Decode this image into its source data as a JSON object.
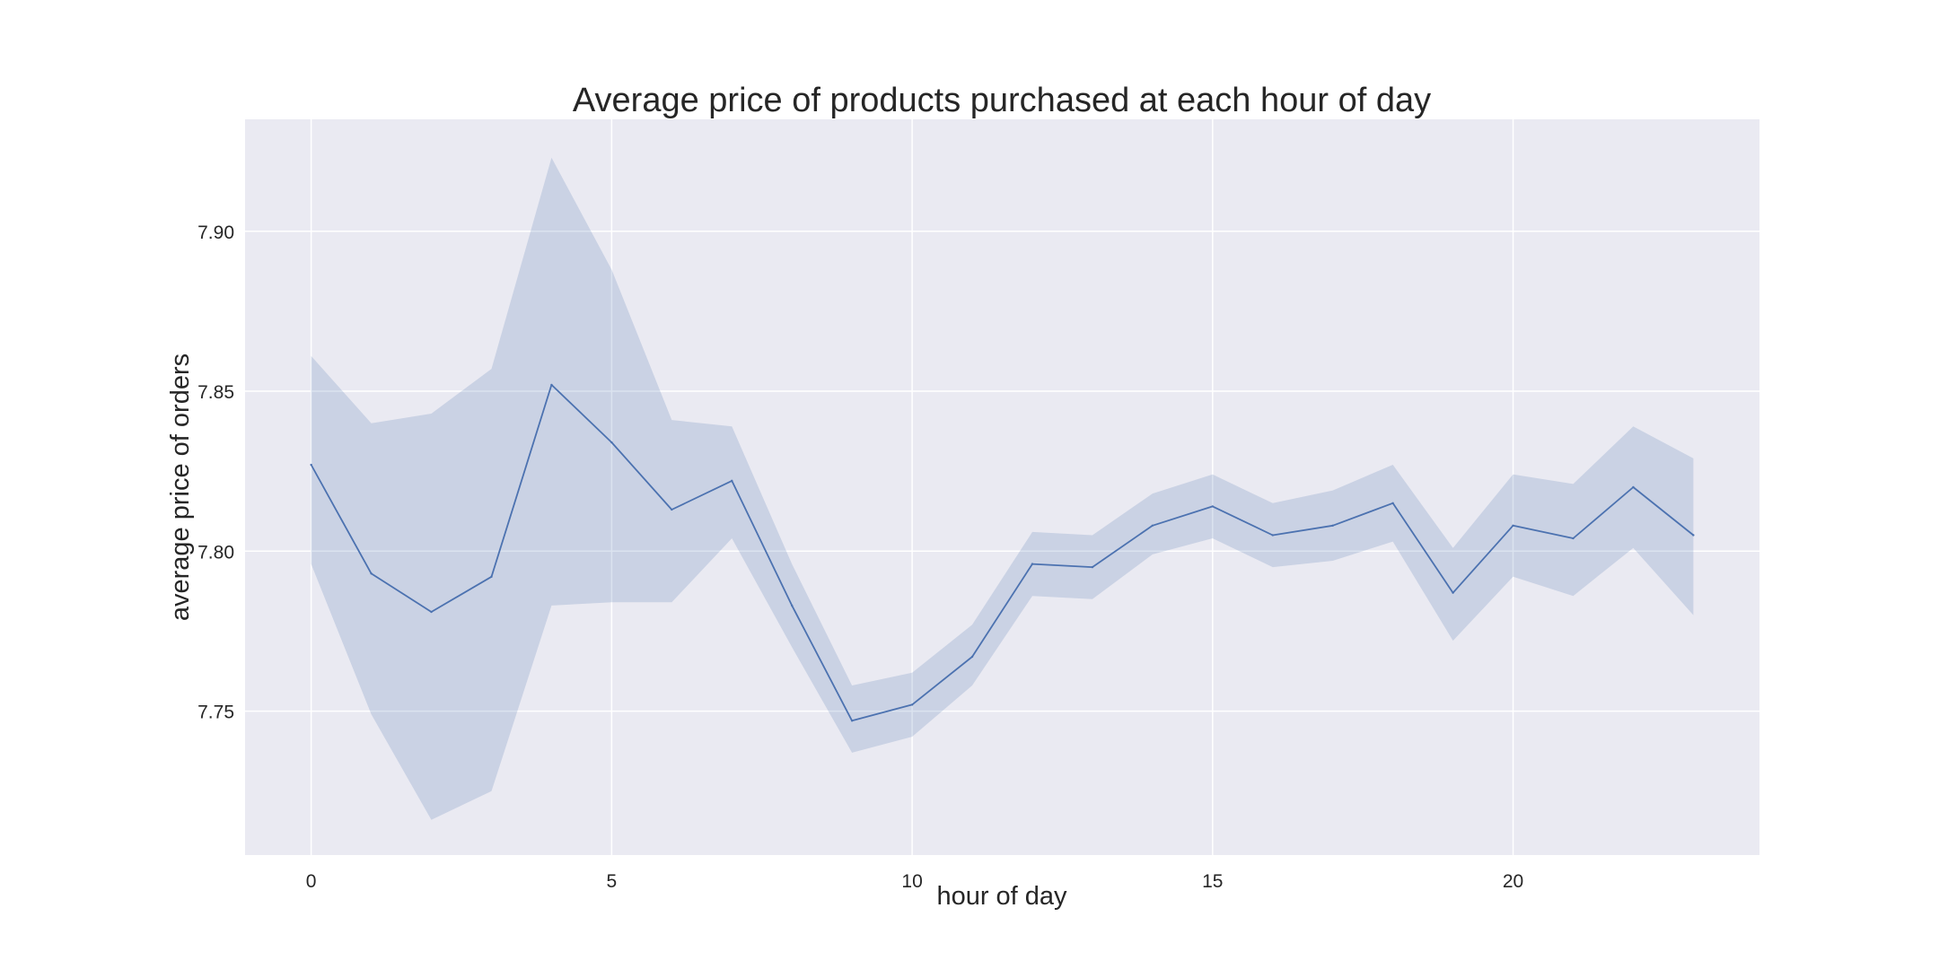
{
  "chart_data": {
    "type": "line",
    "title": "Average price of products purchased at each hour of day",
    "xlabel": "hour of day",
    "ylabel": "average price of orders",
    "xlim": [
      -1.1,
      24.1
    ],
    "ylim": [
      7.705,
      7.935
    ],
    "xticks": [
      0,
      5,
      10,
      15,
      20
    ],
    "yticks": [
      7.75,
      7.8,
      7.85,
      7.9
    ],
    "xtick_labels": [
      "0",
      "5",
      "10",
      "15",
      "20"
    ],
    "ytick_labels": [
      "7.75",
      "7.80",
      "7.85",
      "7.90"
    ],
    "grid": true,
    "legend": "none",
    "colors": {
      "plot_background": "#eaeaf2",
      "grid": "#ffffff",
      "line": "#4c72b0",
      "band": "#4c72b0"
    },
    "series": [
      {
        "x": [
          0,
          1,
          2,
          3,
          4,
          5,
          6,
          7,
          8,
          9,
          10,
          11,
          12,
          13,
          14,
          15,
          16,
          17,
          18,
          19,
          20,
          21,
          22,
          23
        ],
        "values": [
          7.827,
          7.793,
          7.781,
          7.792,
          7.852,
          7.834,
          7.813,
          7.822,
          7.783,
          7.747,
          7.752,
          7.767,
          7.796,
          7.795,
          7.808,
          7.814,
          7.805,
          7.808,
          7.815,
          7.787,
          7.808,
          7.804,
          7.82,
          7.805
        ],
        "ci_lower": [
          7.796,
          7.749,
          7.716,
          7.725,
          7.783,
          7.784,
          7.784,
          7.804,
          7.77,
          7.737,
          7.742,
          7.758,
          7.786,
          7.785,
          7.799,
          7.804,
          7.795,
          7.797,
          7.803,
          7.772,
          7.792,
          7.786,
          7.801,
          7.78
        ],
        "ci_upper": [
          7.861,
          7.84,
          7.843,
          7.857,
          7.923,
          7.888,
          7.841,
          7.839,
          7.796,
          7.758,
          7.762,
          7.777,
          7.806,
          7.805,
          7.818,
          7.824,
          7.815,
          7.819,
          7.827,
          7.801,
          7.824,
          7.821,
          7.839,
          7.829
        ]
      }
    ]
  }
}
